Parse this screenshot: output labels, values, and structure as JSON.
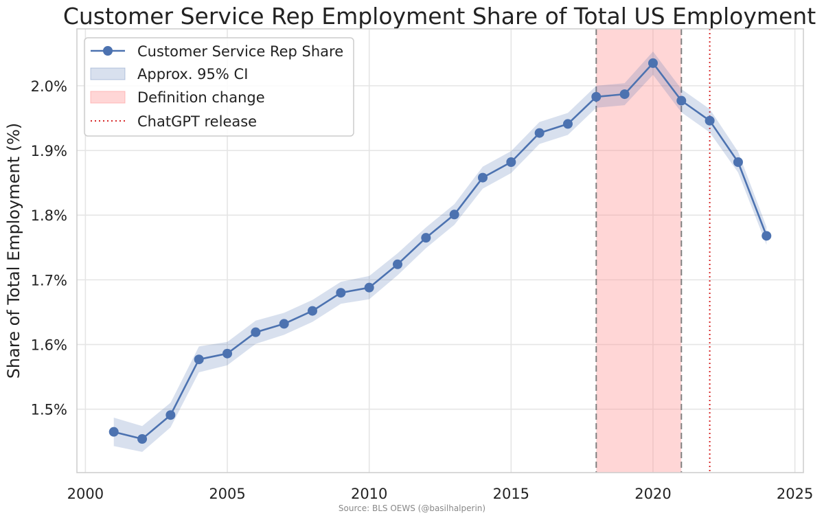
{
  "chart_data": {
    "type": "line",
    "title": "Customer Service Rep Employment Share of Total US Employment",
    "xlabel": "",
    "ylabel": "Share of Total Employment (%)",
    "source": "Source: BLS OEWS (@basilhalperin)",
    "xlim": [
      1999.7,
      2025.3
    ],
    "ylim": [
      1.402,
      2.088
    ],
    "grid": true,
    "legend_position": "top-left",
    "x_ticks": [
      2000,
      2005,
      2010,
      2015,
      2020,
      2025
    ],
    "x_tick_labels": [
      "2000",
      "2005",
      "2010",
      "2015",
      "2020",
      "2025"
    ],
    "y_ticks": [
      1.5,
      1.6,
      1.7,
      1.8,
      1.9,
      2.0
    ],
    "y_tick_labels": [
      "1.5%",
      "1.6%",
      "1.7%",
      "1.8%",
      "1.9%",
      "2.0%"
    ],
    "series": [
      {
        "name": "Customer Service Rep Share",
        "color": "#4c72b0",
        "x": [
          2001,
          2002,
          2003,
          2004,
          2005,
          2006,
          2007,
          2008,
          2009,
          2010,
          2011,
          2012,
          2013,
          2014,
          2015,
          2016,
          2017,
          2018,
          2019,
          2020,
          2021,
          2022,
          2023,
          2024
        ],
        "y": [
          1.465,
          1.454,
          1.491,
          1.577,
          1.586,
          1.619,
          1.632,
          1.652,
          1.68,
          1.688,
          1.724,
          1.765,
          1.801,
          1.858,
          1.882,
          1.927,
          1.941,
          1.983,
          1.987,
          2.035,
          1.977,
          1.946,
          1.882,
          1.768
        ],
        "ci_lower": [
          1.443,
          1.434,
          1.472,
          1.557,
          1.568,
          1.601,
          1.615,
          1.635,
          1.663,
          1.67,
          1.707,
          1.749,
          1.785,
          1.841,
          1.865,
          1.91,
          1.924,
          1.966,
          1.97,
          2.017,
          1.959,
          1.928,
          1.866,
          1.754
        ],
        "ci_upper": [
          1.487,
          1.474,
          1.51,
          1.597,
          1.604,
          1.637,
          1.649,
          1.669,
          1.697,
          1.706,
          1.741,
          1.781,
          1.817,
          1.875,
          1.899,
          1.944,
          1.958,
          2.0,
          2.004,
          2.053,
          1.995,
          1.964,
          1.898,
          1.782
        ]
      }
    ],
    "ci_label": "Approx. 95% CI",
    "ci_color": "#4c72b0",
    "definition_change": {
      "label": "Definition change",
      "x_start": 2018,
      "x_end": 2021,
      "color": "#ff9999"
    },
    "chatgpt_release": {
      "label": "ChatGPT release",
      "x": 2022,
      "color": "#d62728"
    }
  }
}
